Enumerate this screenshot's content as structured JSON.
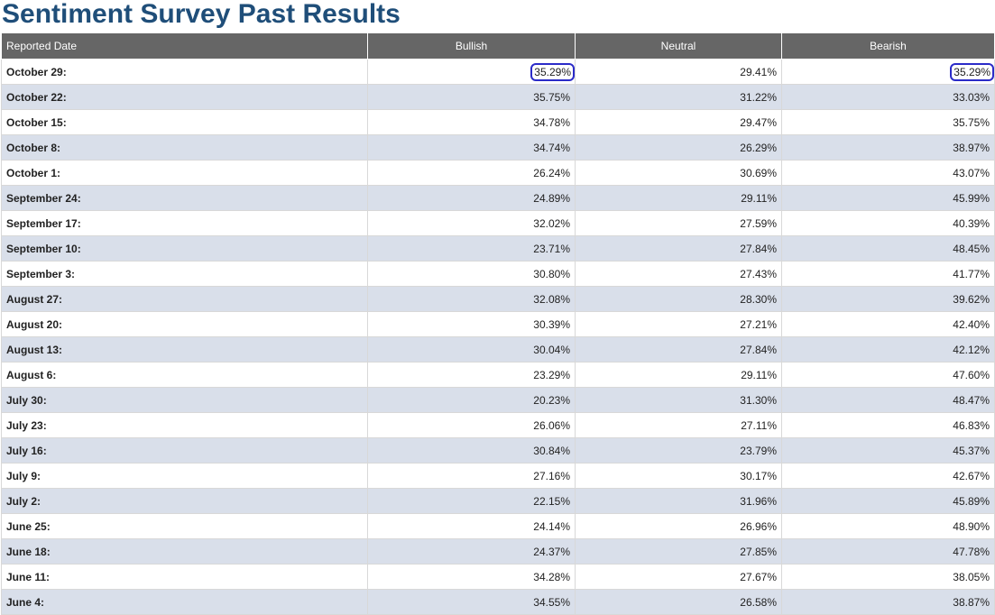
{
  "page": {
    "title": "Sentiment Survey Past Results"
  },
  "table": {
    "headers": {
      "date": "Reported Date",
      "bullish": "Bullish",
      "neutral": "Neutral",
      "bearish": "Bearish"
    },
    "rows": [
      {
        "date": "October 29:",
        "bullish": "35.29%",
        "neutral": "29.41%",
        "bearish": "35.29%"
      },
      {
        "date": "October 22:",
        "bullish": "35.75%",
        "neutral": "31.22%",
        "bearish": "33.03%"
      },
      {
        "date": "October 15:",
        "bullish": "34.78%",
        "neutral": "29.47%",
        "bearish": "35.75%"
      },
      {
        "date": "October 8:",
        "bullish": "34.74%",
        "neutral": "26.29%",
        "bearish": "38.97%"
      },
      {
        "date": "October 1:",
        "bullish": "26.24%",
        "neutral": "30.69%",
        "bearish": "43.07%"
      },
      {
        "date": "September 24:",
        "bullish": "24.89%",
        "neutral": "29.11%",
        "bearish": "45.99%"
      },
      {
        "date": "September 17:",
        "bullish": "32.02%",
        "neutral": "27.59%",
        "bearish": "40.39%"
      },
      {
        "date": "September 10:",
        "bullish": "23.71%",
        "neutral": "27.84%",
        "bearish": "48.45%"
      },
      {
        "date": "September 3:",
        "bullish": "30.80%",
        "neutral": "27.43%",
        "bearish": "41.77%"
      },
      {
        "date": "August 27:",
        "bullish": "32.08%",
        "neutral": "28.30%",
        "bearish": "39.62%"
      },
      {
        "date": "August 20:",
        "bullish": "30.39%",
        "neutral": "27.21%",
        "bearish": "42.40%"
      },
      {
        "date": "August 13:",
        "bullish": "30.04%",
        "neutral": "27.84%",
        "bearish": "42.12%"
      },
      {
        "date": "August 6:",
        "bullish": "23.29%",
        "neutral": "29.11%",
        "bearish": "47.60%"
      },
      {
        "date": "July 30:",
        "bullish": "20.23%",
        "neutral": "31.30%",
        "bearish": "48.47%"
      },
      {
        "date": "July 23:",
        "bullish": "26.06%",
        "neutral": "27.11%",
        "bearish": "46.83%"
      },
      {
        "date": "July 16:",
        "bullish": "30.84%",
        "neutral": "23.79%",
        "bearish": "45.37%"
      },
      {
        "date": "July 9:",
        "bullish": "27.16%",
        "neutral": "30.17%",
        "bearish": "42.67%"
      },
      {
        "date": "July 2:",
        "bullish": "22.15%",
        "neutral": "31.96%",
        "bearish": "45.89%"
      },
      {
        "date": "June 25:",
        "bullish": "24.14%",
        "neutral": "26.96%",
        "bearish": "48.90%"
      },
      {
        "date": "June 18:",
        "bullish": "24.37%",
        "neutral": "27.85%",
        "bearish": "47.78%"
      },
      {
        "date": "June 11:",
        "bullish": "34.28%",
        "neutral": "27.67%",
        "bearish": "38.05%"
      },
      {
        "date": "June 4:",
        "bullish": "34.55%",
        "neutral": "26.58%",
        "bearish": "38.87%"
      }
    ]
  },
  "style": {
    "title_color": "#1f4e79",
    "header_bg": "#666666",
    "row_alt_bg": "#d9dfea",
    "highlight_circle_color": "#2b2bc8"
  }
}
